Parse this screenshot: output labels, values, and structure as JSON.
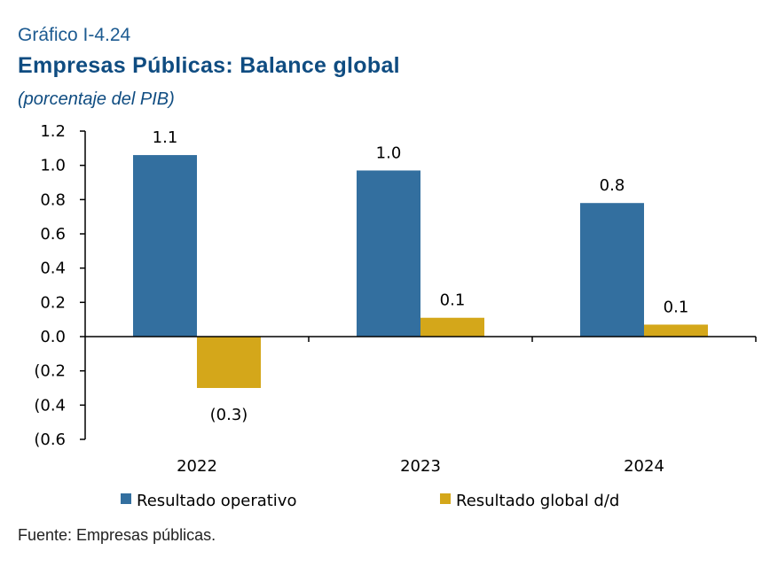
{
  "header": {
    "kicker": "Gráfico I-4.24",
    "title": "Empresas Públicas: Balance global",
    "subtitle": "(porcentaje del PIB)"
  },
  "footer": {
    "source": "Fuente: Empresas públicas."
  },
  "colors": {
    "series1": "#336f9f",
    "series2": "#d4a71a",
    "axis": "#000000",
    "title": "#0f4c81"
  },
  "chart_data": {
    "type": "bar",
    "categories": [
      "2022",
      "2023",
      "2024"
    ],
    "series": [
      {
        "name": "Resultado operativo",
        "values": [
          1.06,
          0.97,
          0.78
        ],
        "labels": [
          "1.1",
          "1.0",
          "0.8"
        ]
      },
      {
        "name": "Resultado global d/d",
        "values": [
          -0.3,
          0.11,
          0.07
        ],
        "labels": [
          "(0.3)",
          "0.1",
          "0.1"
        ]
      }
    ],
    "ylim": [
      -0.6,
      1.2
    ],
    "yticks": [
      1.2,
      1.0,
      0.8,
      0.6,
      0.4,
      0.2,
      0.0,
      -0.2,
      -0.4,
      -0.6
    ],
    "ytick_labels": [
      "1.2",
      "1.0",
      "0.8",
      "0.6",
      "0.4",
      "0.2",
      "0.0",
      "(0.2",
      "(0.4",
      "(0.6"
    ],
    "legend": "bottom",
    "grid": false,
    "title": "Empresas Públicas: Balance global",
    "ylabel": "",
    "xlabel": ""
  }
}
